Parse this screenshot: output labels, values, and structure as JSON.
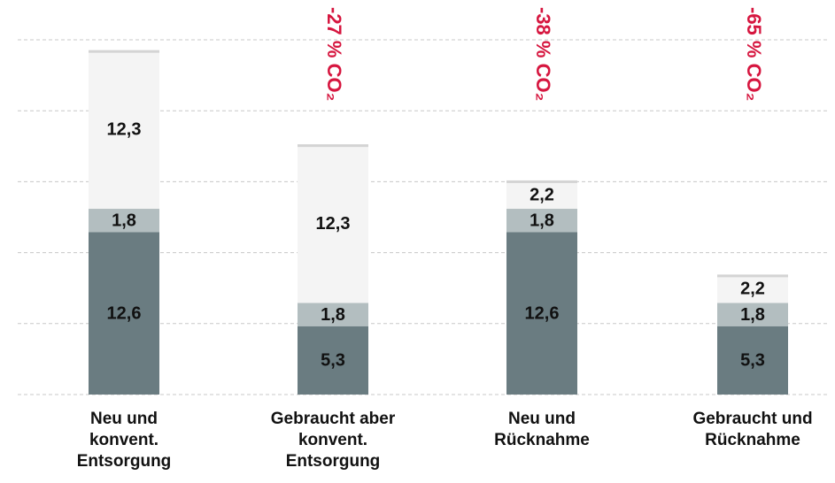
{
  "chart_data": {
    "type": "stacked-bar",
    "categories": [
      "Neu und\nkonvent.\nEntsorgung",
      "Gebraucht aber\nkonvent.\nEntsorgung",
      "Neu und\nRücknahme",
      "Gebraucht und\nRücknahme"
    ],
    "series": [
      {
        "color": "#6a7c81",
        "values": [
          12.6,
          5.3,
          12.6,
          5.3
        ],
        "value_labels": [
          "12,6",
          "5,3",
          "12,6",
          "5,3"
        ]
      },
      {
        "color": "#b3bec0",
        "values": [
          1.8,
          1.8,
          1.8,
          1.8
        ],
        "value_labels": [
          "1,8",
          "1,8",
          "1,8",
          "1,8"
        ]
      },
      {
        "color": "#f4f4f4",
        "values": [
          12.3,
          12.3,
          2.2,
          2.2
        ],
        "value_labels": [
          "12,3",
          "12,3",
          "2,2",
          "2,2"
        ]
      }
    ],
    "annotations": [
      null,
      "-27 % CO₂",
      "-38 % CO₂",
      "-65 % CO₂"
    ],
    "annotation_color": "#d6163f",
    "ylim": [
      0,
      27.5
    ],
    "yticks": [
      0,
      5.5,
      11,
      16.5,
      22,
      27.5
    ],
    "grid": true
  }
}
